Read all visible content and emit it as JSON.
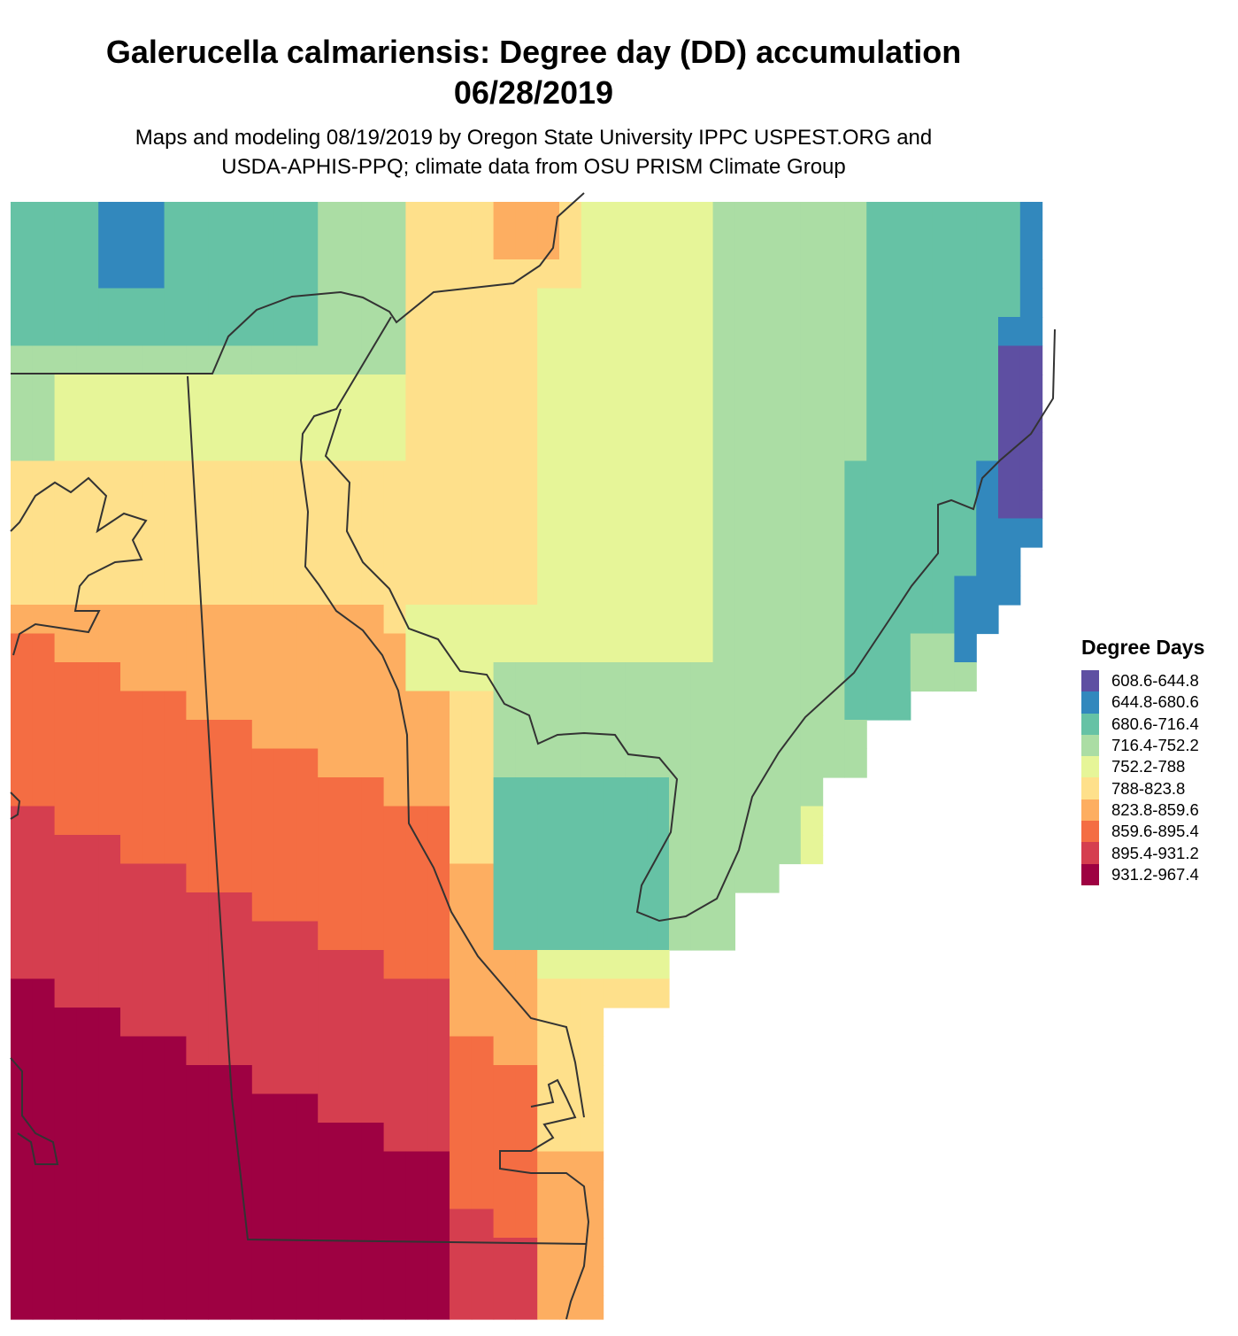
{
  "title_line1": "Galerucella calmariensis: Degree day (DD) accumulation",
  "title_line2": "06/28/2019",
  "subtitle_line1": "Maps and modeling 08/19/2019 by Oregon State University IPPC USPEST.ORG and",
  "subtitle_line2": "USDA-APHIS-PPQ; climate data from OSU PRISM Climate Group",
  "legend": {
    "title": "Degree Days",
    "items": [
      {
        "label": "608.6-644.8",
        "color": "#5e4fa2"
      },
      {
        "label": "644.8-680.6",
        "color": "#3288bd"
      },
      {
        "label": "680.6-716.4",
        "color": "#66c2a5"
      },
      {
        "label": "716.4-752.2",
        "color": "#abdda4"
      },
      {
        "label": "752.2-788",
        "color": "#e6f598"
      },
      {
        "label": "788-823.8",
        "color": "#fee08b"
      },
      {
        "label": "823.8-859.6",
        "color": "#fdae61"
      },
      {
        "label": "859.6-895.4",
        "color": "#f46d43"
      },
      {
        "label": "895.4-931.2",
        "color": "#d53e4f"
      },
      {
        "label": "931.2-967.4",
        "color": "#9e0142"
      }
    ]
  },
  "colors": {
    "boundary": "#333333"
  }
}
